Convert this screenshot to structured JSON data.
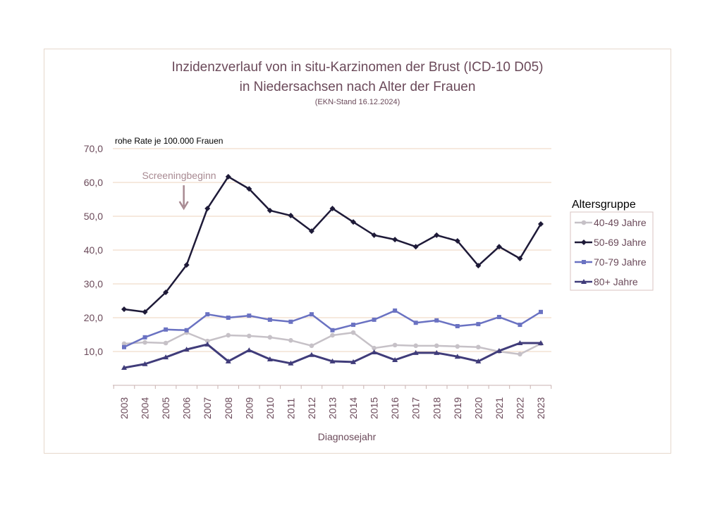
{
  "chart_data": {
    "type": "line",
    "title": "Inzidenzverlauf von in situ-Karzinomen der Brust (ICD-10 D05)",
    "title_line2": "in Niedersachsen nach Alter der Frauen",
    "subtitle": "(EKN-Stand 16.12.2024)",
    "ylabel": "rohe Rate je 100.000 Frauen",
    "xlabel": "Diagnosejahr",
    "ylim": [
      0,
      70
    ],
    "yticks": [
      "10,0",
      "20,0",
      "30,0",
      "40,0",
      "50,0",
      "60,0",
      "70,0"
    ],
    "grid": true,
    "legend_title": "Altersgruppe",
    "legend_position": "right",
    "annotation": "Screeningbeginn",
    "annotation_x": "2006",
    "x": [
      "2003",
      "2004",
      "2005",
      "2006",
      "2007",
      "2008",
      "2009",
      "2010",
      "2011",
      "2012",
      "2013",
      "2014",
      "2015",
      "2016",
      "2017",
      "2018",
      "2019",
      "2020",
      "2021",
      "2022",
      "2023"
    ],
    "series": [
      {
        "name": "40-49 Jahre",
        "color": "#c6c1c7",
        "marker": "circle",
        "values": [
          12.3,
          12.7,
          12.5,
          15.6,
          13.1,
          14.8,
          14.6,
          14.2,
          13.3,
          11.7,
          14.8,
          15.6,
          11.0,
          11.9,
          11.7,
          11.7,
          11.5,
          11.3,
          10.0,
          9.2,
          12.3
        ]
      },
      {
        "name": "50-69 Jahre",
        "color": "#1e1a38",
        "marker": "diamond",
        "values": [
          22.5,
          21.7,
          27.5,
          35.6,
          52.3,
          61.7,
          58.1,
          51.7,
          50.2,
          45.6,
          52.3,
          48.3,
          44.4,
          43.1,
          41.0,
          44.4,
          42.7,
          35.4,
          41.0,
          37.5,
          47.7
        ]
      },
      {
        "name": "70-79 Jahre",
        "color": "#6a72c2",
        "marker": "square",
        "values": [
          11.3,
          14.2,
          16.5,
          16.3,
          21.0,
          20.0,
          20.6,
          19.4,
          18.8,
          21.0,
          16.3,
          17.9,
          19.4,
          22.1,
          18.5,
          19.2,
          17.5,
          18.1,
          20.2,
          17.9,
          21.7
        ]
      },
      {
        "name": "80+ Jahre",
        "color": "#403c7a",
        "marker": "triangle",
        "values": [
          5.2,
          6.3,
          8.3,
          10.6,
          12.1,
          7.1,
          10.4,
          7.7,
          6.5,
          9.0,
          7.1,
          6.9,
          9.8,
          7.5,
          9.6,
          9.6,
          8.5,
          7.1,
          10.2,
          12.5,
          12.5
        ]
      }
    ],
    "colors": {
      "text": "#6b4a5a",
      "grid": "#f0dccb",
      "arrow": "#a88a92",
      "frame": "#e6d8cc"
    }
  }
}
